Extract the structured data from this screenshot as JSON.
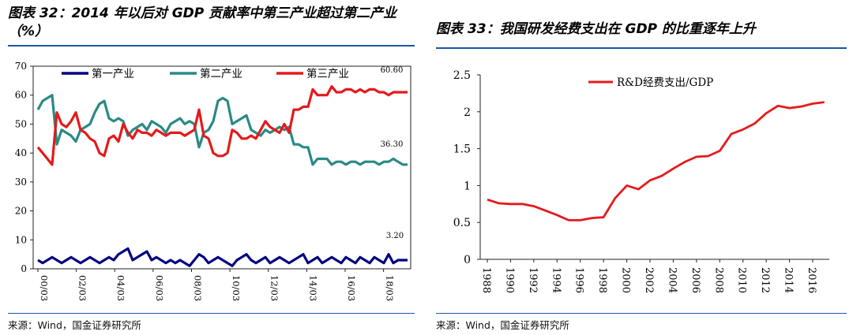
{
  "charts": [
    {
      "title": "图表 32：2014 年以后对 GDP 贡献率中第三产业超过第二产业（%）",
      "source": "来源：Wind，国金证券研究所"
    },
    {
      "title": "图表 33：我国研发经费支出在 GDP 的比重逐年上升",
      "source": "来源：Wind，国金证券研究所"
    }
  ],
  "colors": {
    "rule": "#1a56a6",
    "primary": "#000080",
    "secondary": "#2a8a85",
    "tertiary": "#e41a1c",
    "rd": "#e41a1c"
  },
  "chart_data": [
    {
      "type": "line",
      "ylim": [
        0,
        70
      ],
      "yticks": [
        "0",
        "10",
        "20",
        "30",
        "40",
        "50",
        "60",
        "70"
      ],
      "xticks": [
        "00/03",
        "02/03",
        "04/03",
        "06/03",
        "08/03",
        "10/03",
        "12/03",
        "14/03",
        "16/03",
        "18/03"
      ],
      "x_start": 2000.25,
      "x_end": 2019.5,
      "legend_position": "top",
      "annotations": [
        "60.60",
        "36.30",
        "3.20"
      ],
      "series": [
        {
          "name": "第一产业",
          "color": "#000080",
          "values": [
            3,
            2,
            3,
            4,
            3,
            2,
            3,
            4,
            3,
            2,
            3,
            4,
            3,
            2,
            3,
            4,
            3,
            5,
            6,
            7,
            3,
            4,
            5,
            6,
            3,
            4,
            3,
            2,
            3,
            2,
            3,
            2,
            1,
            3,
            5,
            4,
            2,
            3,
            4,
            3,
            2,
            1,
            3,
            4,
            5,
            3,
            2,
            3,
            4,
            2,
            3,
            4,
            3,
            2,
            3,
            4,
            5,
            2,
            3,
            4,
            2,
            3,
            4,
            3,
            2,
            4,
            3,
            2,
            4,
            3,
            2,
            4,
            3,
            2,
            5,
            2,
            3,
            3,
            3
          ]
        },
        {
          "name": "第二产业",
          "color": "#2a8a85",
          "values": [
            55,
            58,
            59,
            60,
            43,
            48,
            47,
            46,
            44,
            48,
            49,
            50,
            54,
            57,
            58,
            52,
            51,
            52,
            51,
            46,
            48,
            49,
            50,
            48,
            51,
            50,
            49,
            47,
            50,
            51,
            52,
            50,
            51,
            50,
            42,
            47,
            48,
            51,
            58,
            59,
            58,
            50,
            51,
            52,
            53,
            48,
            47,
            46,
            48,
            47,
            48,
            49,
            48,
            49,
            43,
            43,
            42,
            42,
            36,
            38,
            38,
            38,
            36,
            37,
            37,
            36,
            37,
            37,
            36,
            37,
            37,
            37,
            36,
            37,
            37,
            38,
            37,
            36,
            36
          ]
        },
        {
          "name": "第三产业",
          "color": "#e41a1c",
          "values": [
            42,
            40,
            38,
            36,
            54,
            50,
            49,
            51,
            54,
            48,
            47,
            45,
            44,
            40,
            39,
            45,
            46,
            44,
            50,
            47,
            45,
            48,
            47,
            47,
            46,
            48,
            47,
            46,
            47,
            47,
            47,
            46,
            47,
            48,
            55,
            46,
            45,
            40,
            39,
            39,
            40,
            48,
            47,
            45,
            45,
            46,
            45,
            48,
            51,
            49,
            48,
            47,
            50,
            47,
            55,
            55,
            56,
            56,
            62,
            60,
            60,
            60,
            63,
            61,
            61,
            62,
            62,
            61,
            62,
            61,
            62,
            62,
            61,
            61,
            60,
            61,
            61,
            61,
            61
          ]
        }
      ]
    },
    {
      "type": "line",
      "ylim": [
        0,
        2.5
      ],
      "yticks": [
        "0",
        "0.5",
        "1",
        "1.5",
        "2",
        "2.5"
      ],
      "xticks": [
        "1988",
        "1990",
        "1992",
        "1994",
        "1996",
        "1998",
        "2000",
        "2002",
        "2004",
        "2006",
        "2008",
        "2010",
        "2012",
        "2014",
        "2016"
      ],
      "legend_position": "top-left",
      "series": [
        {
          "name": "R&D经费支出/GDP",
          "color": "#e41a1c",
          "x": [
            1988,
            1989,
            1990,
            1991,
            1992,
            1993,
            1994,
            1995,
            1996,
            1997,
            1998,
            1999,
            2000,
            2001,
            2002,
            2003,
            2004,
            2005,
            2006,
            2007,
            2008,
            2009,
            2010,
            2011,
            2012,
            2013,
            2014,
            2015,
            2016,
            2017
          ],
          "values": [
            0.81,
            0.76,
            0.75,
            0.75,
            0.72,
            0.66,
            0.6,
            0.53,
            0.53,
            0.56,
            0.57,
            0.83,
            1.0,
            0.95,
            1.07,
            1.13,
            1.23,
            1.32,
            1.39,
            1.4,
            1.47,
            1.7,
            1.76,
            1.84,
            1.98,
            2.08,
            2.05,
            2.07,
            2.11,
            2.13
          ]
        }
      ]
    }
  ]
}
